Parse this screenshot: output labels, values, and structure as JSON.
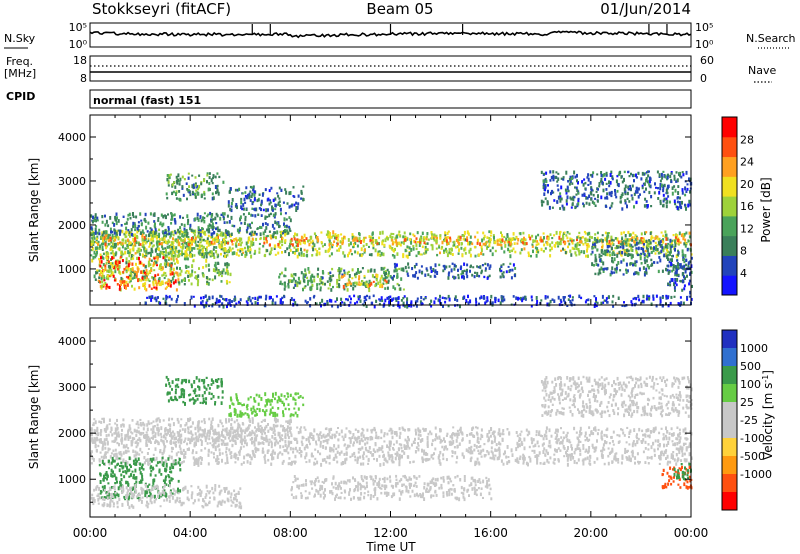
{
  "header": {
    "station": "Stokkseyri (fitACF)",
    "beam": "Beam 05",
    "date": "01/Jun/2014"
  },
  "top_panels": {
    "nsky": {
      "label": "N.Sky",
      "left_ticks": [
        "10^5",
        "10^0"
      ],
      "right_ticks": [
        "10^5",
        "10^0"
      ],
      "right_label": "N.Search"
    },
    "freq": {
      "label_line1": "Freq.",
      "label_line2": "[MHz]",
      "left_ticks": [
        "18",
        "8"
      ],
      "right_ticks": [
        "60",
        "0"
      ],
      "right_label": "Nave"
    },
    "cpid": {
      "label": "CPID",
      "text": "normal (fast) 151"
    }
  },
  "colors": {
    "power": [
      "#1414ff",
      "#2244bb",
      "#3a7f5a",
      "#4aa35a",
      "#9ed23a",
      "#f0e020",
      "#ffa020",
      "#ff5010",
      "#ff0000"
    ],
    "velocity": [
      "#2030c0",
      "#3070d0",
      "#3a9a4a",
      "#66cc44",
      "#c8c8c8",
      "#c8c8c8",
      "#ffd23a",
      "#ff9a10",
      "#ff5010",
      "#ff0000"
    ]
  },
  "chart_data": [
    {
      "type": "heatmap",
      "quantity": "power",
      "ylabel": "Slant Range [km]",
      "xlabel": "",
      "y_ticks": [
        1000,
        2000,
        3000,
        4000
      ],
      "ylim": [
        180,
        4500
      ],
      "x_ticks": [
        "00:00",
        "04:00",
        "08:00",
        "12:00",
        "16:00",
        "20:00",
        "00:00"
      ],
      "xlim_hours": [
        0,
        24
      ],
      "colorbar": {
        "label": "Power [dB]",
        "ticks": [
          4,
          8,
          12,
          16,
          20,
          24,
          28
        ],
        "range": [
          0,
          32
        ]
      },
      "scatter_bands": [
        {
          "t0": 0.0,
          "t1": 5.6,
          "r0": 680,
          "r1": 1920,
          "value": 14
        },
        {
          "t0": 0.0,
          "t1": 24.0,
          "r0": 1320,
          "r1": 1880,
          "value": 16
        },
        {
          "t0": 0.0,
          "t1": 24.0,
          "r0": 1580,
          "r1": 1760,
          "value": 21
        },
        {
          "t0": 0.3,
          "t1": 3.5,
          "r0": 560,
          "r1": 1300,
          "value": 24
        },
        {
          "t0": 0.0,
          "t1": 8.0,
          "r0": 1800,
          "r1": 2300,
          "value": 9
        },
        {
          "t0": 3.0,
          "t1": 5.3,
          "r0": 2600,
          "r1": 3200,
          "value": 11
        },
        {
          "t0": 5.5,
          "t1": 8.5,
          "r0": 2350,
          "r1": 2900,
          "value": 7
        },
        {
          "t0": 7.5,
          "t1": 12.5,
          "r0": 550,
          "r1": 1050,
          "value": 12
        },
        {
          "t0": 10.0,
          "t1": 12.0,
          "r0": 620,
          "r1": 900,
          "value": 20
        },
        {
          "t0": 12.0,
          "t1": 17.0,
          "r0": 820,
          "r1": 1150,
          "value": 7
        },
        {
          "t0": 18.0,
          "t1": 24.0,
          "r0": 2400,
          "r1": 3250,
          "value": 7
        },
        {
          "t0": 20.0,
          "t1": 24.0,
          "r0": 900,
          "r1": 1700,
          "value": 9
        },
        {
          "t0": 23.0,
          "t1": 24.0,
          "r0": 500,
          "r1": 1200,
          "value": 6
        },
        {
          "t0": 2.0,
          "t1": 24.0,
          "r0": 180,
          "r1": 420,
          "value": 5
        }
      ]
    },
    {
      "type": "heatmap",
      "quantity": "velocity",
      "ylabel": "Slant Range [km]",
      "xlabel": "Time UT",
      "y_ticks": [
        1000,
        2000,
        3000,
        4000
      ],
      "ylim": [
        180,
        4500
      ],
      "x_ticks": [
        "00:00",
        "04:00",
        "08:00",
        "12:00",
        "16:00",
        "20:00",
        "00:00"
      ],
      "xlim_hours": [
        0,
        24
      ],
      "colorbar": {
        "label": "Velocity [m s^-1]",
        "ticks": [
          "1000",
          "500",
          "100",
          "25",
          "-25",
          "-100",
          "-500",
          "-1000"
        ]
      },
      "scatter_bands": [
        {
          "t0": 0.0,
          "t1": 24.0,
          "r0": 1350,
          "r1": 2150,
          "value": 0
        },
        {
          "t0": 0.0,
          "t1": 8.0,
          "r0": 1800,
          "r1": 2350,
          "value": 0
        },
        {
          "t0": 0.3,
          "t1": 3.6,
          "r0": 600,
          "r1": 1500,
          "value": 150
        },
        {
          "t0": 0.0,
          "t1": 6.0,
          "r0": 420,
          "r1": 900,
          "value": 0
        },
        {
          "t0": 3.0,
          "t1": 5.3,
          "r0": 2650,
          "r1": 3250,
          "value": 300
        },
        {
          "t0": 5.5,
          "t1": 8.5,
          "r0": 2400,
          "r1": 2900,
          "value": 40
        },
        {
          "t0": 8.0,
          "t1": 16.0,
          "r0": 600,
          "r1": 1100,
          "value": 0
        },
        {
          "t0": 18.0,
          "t1": 24.0,
          "r0": 2400,
          "r1": 3250,
          "value": 0
        },
        {
          "t0": 22.8,
          "t1": 24.0,
          "r0": 800,
          "r1": 1300,
          "value": -700
        },
        {
          "t0": 23.3,
          "t1": 24.0,
          "r0": 1000,
          "r1": 1400,
          "value": 400
        }
      ]
    }
  ]
}
